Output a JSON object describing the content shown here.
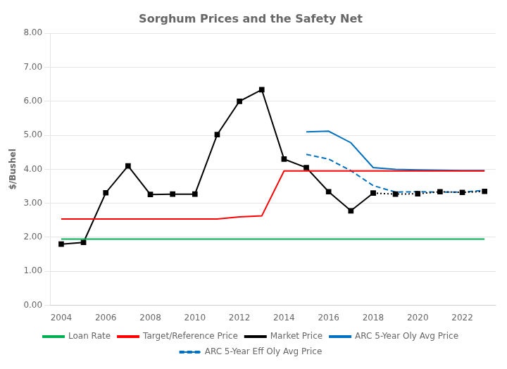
{
  "chart_data": {
    "type": "line",
    "title": "Sorghum Prices and the Safety Net",
    "y_label": "$/Bushel",
    "xlim": [
      2003.5,
      2023.5
    ],
    "xticks": [
      2004,
      2006,
      2008,
      2010,
      2012,
      2014,
      2016,
      2018,
      2020,
      2022
    ],
    "ylim": [
      0.0,
      8.0
    ],
    "yticks": [
      {
        "value": 0.0,
        "label": "0.00"
      },
      {
        "value": 1.0,
        "label": "1.00"
      },
      {
        "value": 2.0,
        "label": "2.00"
      },
      {
        "value": 3.0,
        "label": "3.00"
      },
      {
        "value": 4.0,
        "label": "4.00"
      },
      {
        "value": 5.0,
        "label": "5.00"
      },
      {
        "value": 6.0,
        "label": "6.00"
      },
      {
        "value": 7.0,
        "label": "7.00"
      },
      {
        "value": 8.0,
        "label": "8.00"
      }
    ],
    "grid": "y",
    "legend": "bottom",
    "series": [
      {
        "name": "Loan Rate",
        "color": "#00b050",
        "line_style": "solid",
        "x": [
          2004,
          2005,
          2006,
          2007,
          2008,
          2009,
          2010,
          2011,
          2012,
          2013,
          2014,
          2015,
          2016,
          2017,
          2018,
          2019,
          2020,
          2021,
          2022,
          2023
        ],
        "values": [
          1.95,
          1.95,
          1.95,
          1.95,
          1.95,
          1.95,
          1.95,
          1.95,
          1.95,
          1.95,
          1.95,
          1.95,
          1.95,
          1.95,
          1.95,
          1.95,
          1.95,
          1.95,
          1.95,
          1.95
        ]
      },
      {
        "name": "Target/Reference Price",
        "color": "#ff0000",
        "line_style": "solid",
        "x": [
          2004,
          2005,
          2006,
          2007,
          2008,
          2009,
          2010,
          2011,
          2012,
          2013,
          2014,
          2015,
          2016,
          2017,
          2018,
          2019,
          2020,
          2021,
          2022,
          2023
        ],
        "values": [
          2.54,
          2.54,
          2.54,
          2.54,
          2.54,
          2.54,
          2.54,
          2.54,
          2.6,
          2.63,
          3.95,
          3.95,
          3.95,
          3.95,
          3.95,
          3.95,
          3.95,
          3.95,
          3.95,
          3.95
        ]
      },
      {
        "name": "Market Price",
        "color": "#000000",
        "line_style": "solid",
        "marker": "square",
        "x": [
          2004,
          2005,
          2006,
          2007,
          2008,
          2009,
          2010,
          2011,
          2012,
          2013,
          2014,
          2015,
          2016,
          2017,
          2018
        ],
        "values": [
          1.8,
          1.85,
          3.31,
          4.1,
          3.26,
          3.27,
          3.27,
          5.02,
          6.0,
          6.34,
          4.3,
          4.05,
          3.34,
          2.78,
          3.3
        ]
      },
      {
        "name": "Market Price",
        "color": "#000000",
        "line_style": "dotted",
        "marker": "square",
        "x": [
          2018,
          2019,
          2020,
          2021,
          2022,
          2023
        ],
        "values": [
          3.3,
          3.27,
          3.28,
          3.34,
          3.32,
          3.35
        ]
      },
      {
        "name": "ARC 5-Year Oly Avg Price",
        "color": "#0070c0",
        "line_style": "solid",
        "x": [
          2015,
          2016,
          2017,
          2018,
          2019,
          2020,
          2021,
          2022,
          2023
        ],
        "values": [
          5.1,
          5.12,
          4.78,
          4.05,
          4.0,
          3.98,
          3.97,
          3.96,
          3.96
        ]
      },
      {
        "name": "ARC 5-Year Eff Oly Avg Price",
        "color": "#0070c0",
        "line_style": "dashed",
        "x": [
          2015,
          2016,
          2017,
          2018,
          2019,
          2020,
          2021,
          2022,
          2023
        ],
        "values": [
          4.44,
          4.3,
          3.96,
          3.52,
          3.33,
          3.34,
          3.33,
          3.33,
          3.38
        ]
      }
    ]
  }
}
